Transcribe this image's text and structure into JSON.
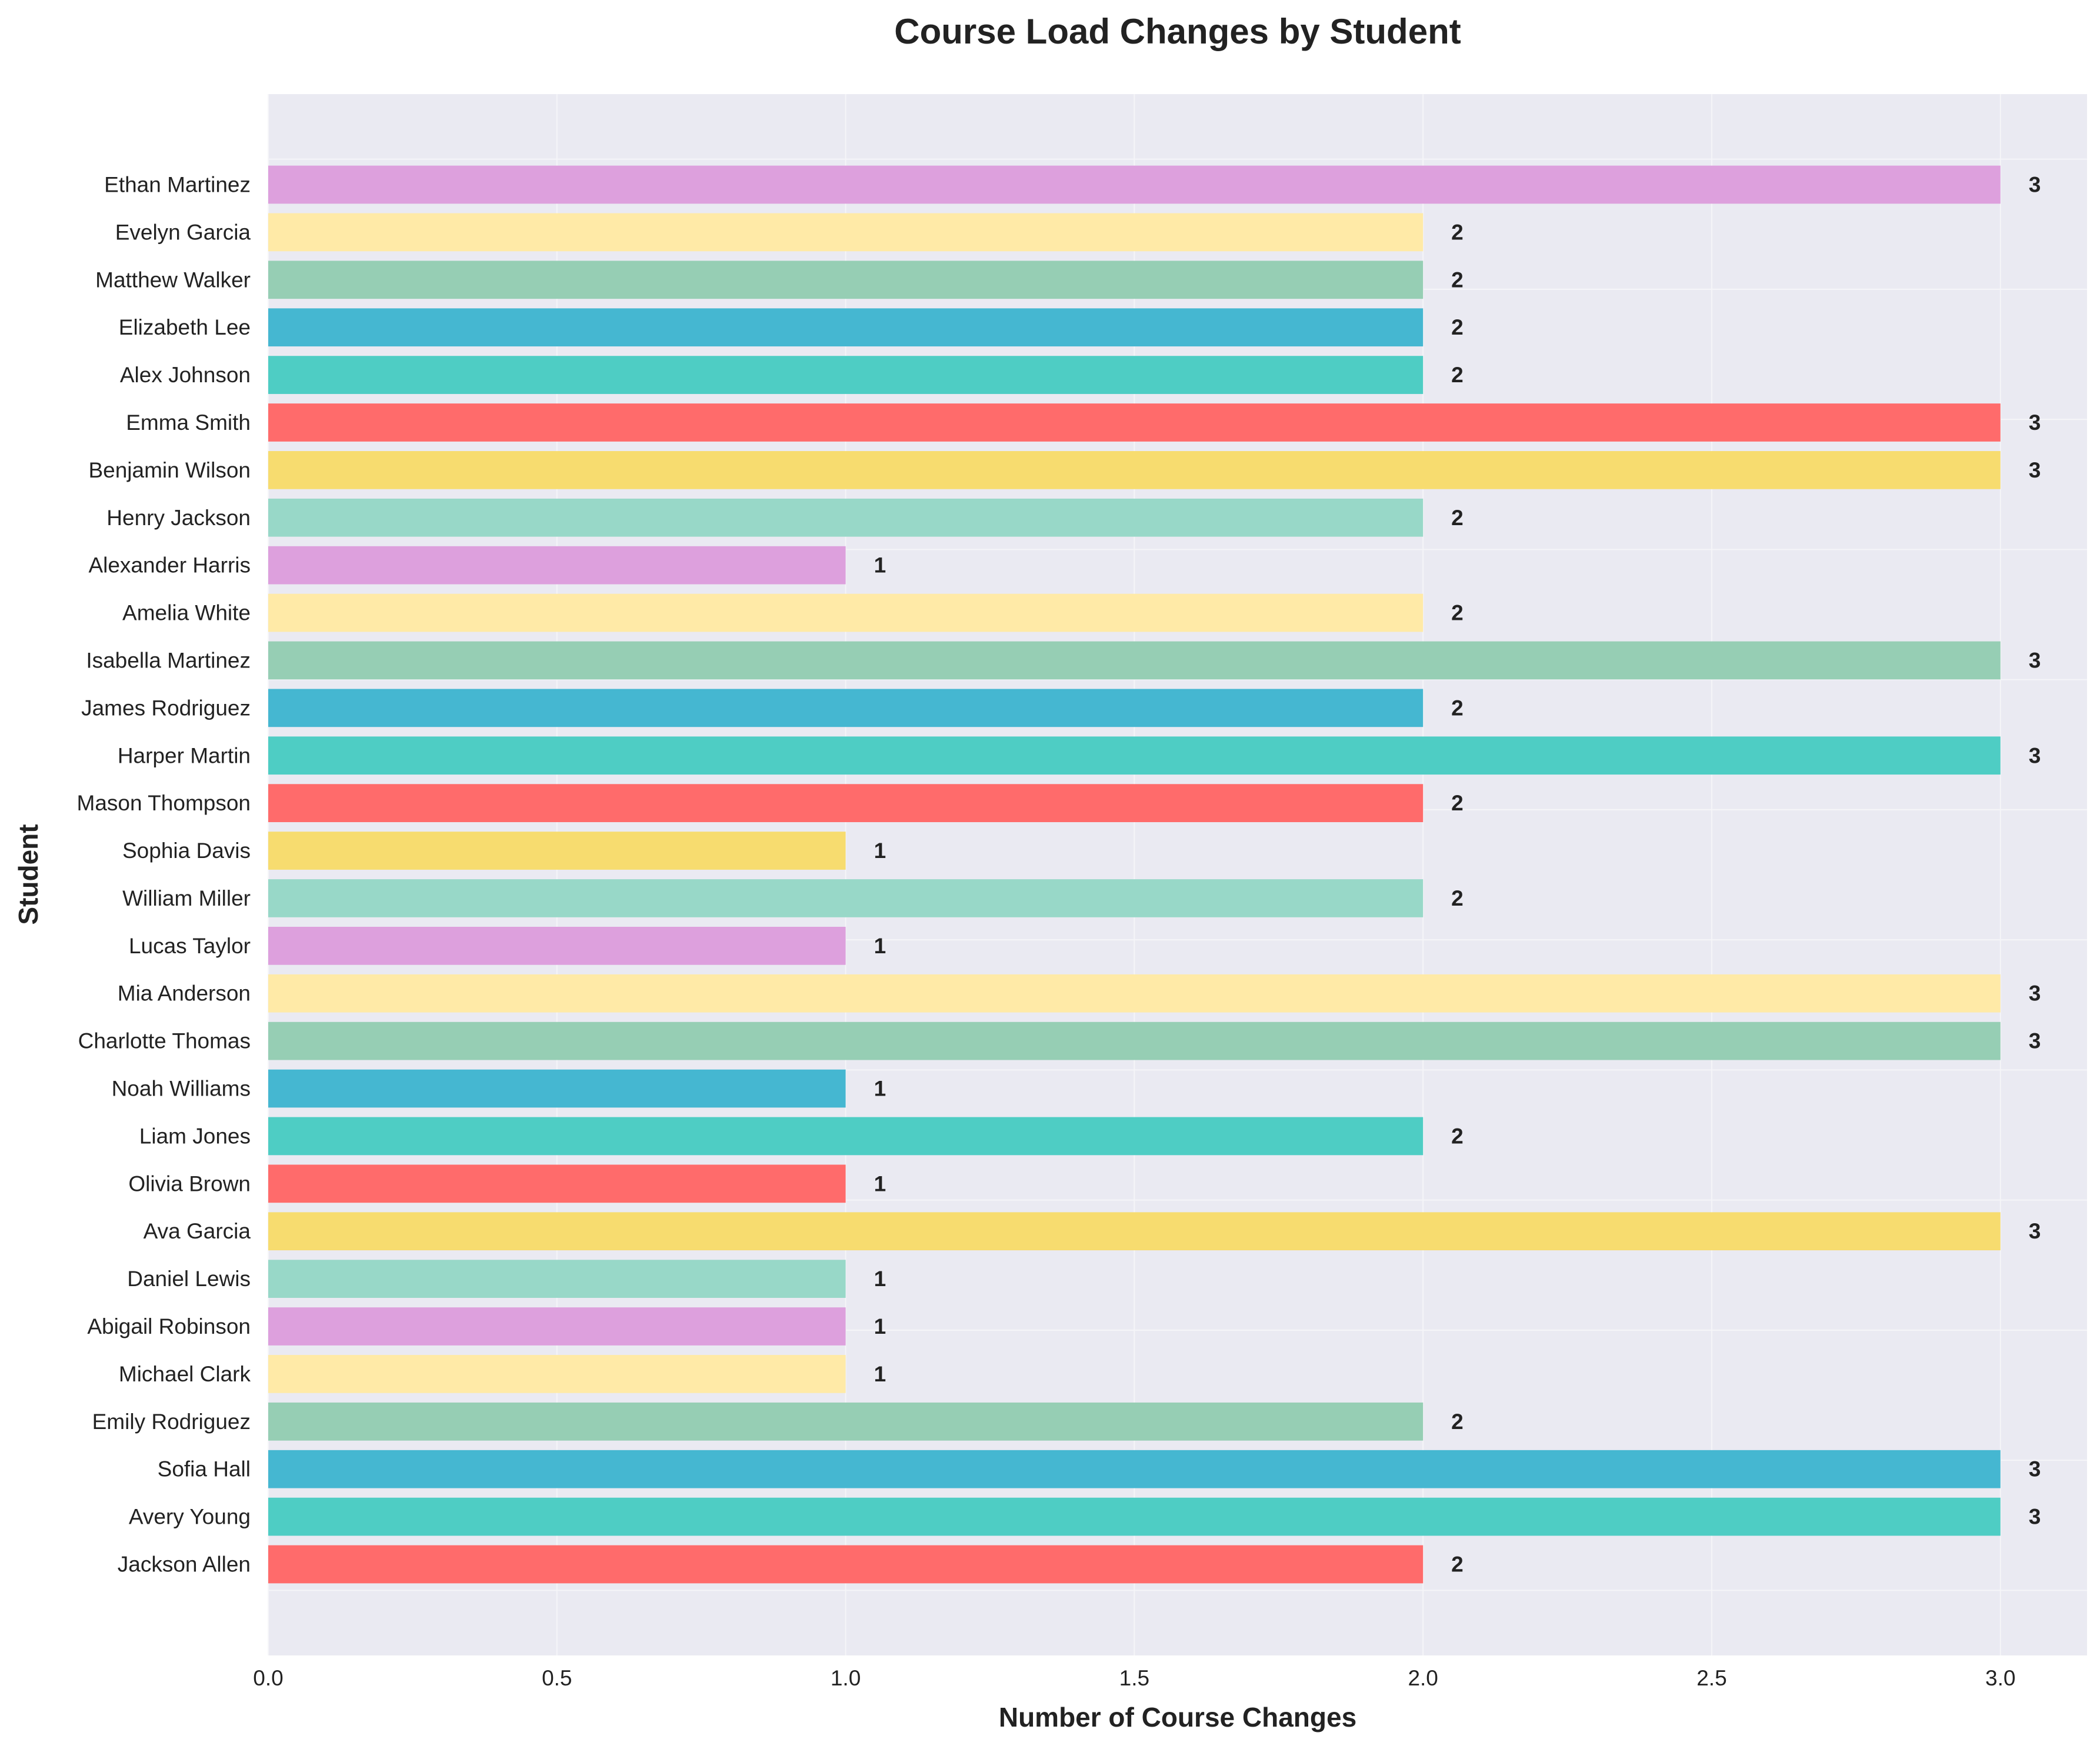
{
  "chart_data": {
    "type": "bar",
    "orientation": "horizontal",
    "title": "Course Load Changes by Student",
    "xlabel": "Number of Course Changes",
    "ylabel": "Student",
    "xlim": [
      0,
      3.15
    ],
    "xticks": [
      "0.0",
      "0.5",
      "1.0",
      "1.5",
      "2.0",
      "2.5",
      "3.0"
    ],
    "grid": true,
    "legend": "none",
    "categories": [
      "Ethan Martinez",
      "Evelyn Garcia",
      "Matthew Walker",
      "Elizabeth Lee",
      "Alex Johnson",
      "Emma Smith",
      "Benjamin Wilson",
      "Henry Jackson",
      "Alexander Harris",
      "Amelia White",
      "Isabella Martinez",
      "James Rodriguez",
      "Harper Martin",
      "Mason Thompson",
      "Sophia Davis",
      "William Miller",
      "Lucas Taylor",
      "Mia Anderson",
      "Charlotte Thomas",
      "Noah Williams",
      "Liam Jones",
      "Olivia Brown",
      "Ava Garcia",
      "Daniel Lewis",
      "Abigail Robinson",
      "Michael Clark",
      "Emily Rodriguez",
      "Sofia Hall",
      "Avery Young",
      "Jackson Allen"
    ],
    "values": [
      3,
      2,
      2,
      2,
      2,
      3,
      3,
      2,
      1,
      2,
      3,
      2,
      3,
      2,
      1,
      2,
      1,
      3,
      3,
      1,
      2,
      1,
      3,
      1,
      1,
      1,
      2,
      3,
      3,
      2
    ],
    "value_labels": [
      "3",
      "2",
      "2",
      "2",
      "2",
      "3",
      "3",
      "2",
      "1",
      "2",
      "3",
      "2",
      "3",
      "2",
      "1",
      "2",
      "1",
      "3",
      "3",
      "1",
      "2",
      "1",
      "3",
      "1",
      "1",
      "1",
      "2",
      "3",
      "3",
      "2"
    ],
    "colors": [
      "#DDA0DD",
      "#FFEAA7",
      "#96CEB4",
      "#45B7D1",
      "#4ECDC4",
      "#FF6B6B",
      "#F7DC6F",
      "#98D8C8",
      "#DDA0DD",
      "#FFEAA7",
      "#96CEB4",
      "#45B7D1",
      "#4ECDC4",
      "#FF6B6B",
      "#F7DC6F",
      "#98D8C8",
      "#DDA0DD",
      "#FFEAA7",
      "#96CEB4",
      "#45B7D1",
      "#4ECDC4",
      "#FF6B6B",
      "#F7DC6F",
      "#98D8C8",
      "#DDA0DD",
      "#FFEAA7",
      "#96CEB4",
      "#45B7D1",
      "#4ECDC4",
      "#FF6B6B"
    ],
    "plot_background": "#EAEAF2",
    "grid_color": "#F5F5F8"
  }
}
